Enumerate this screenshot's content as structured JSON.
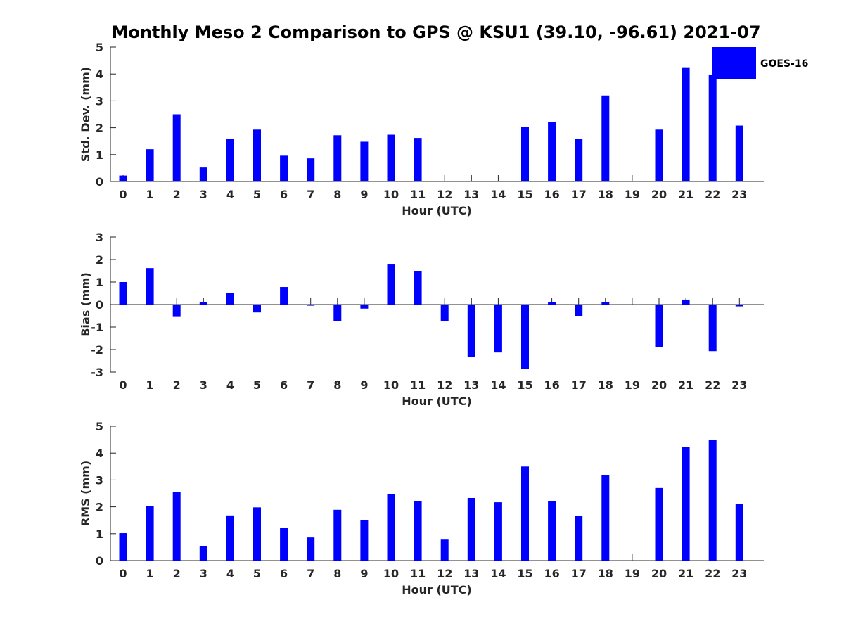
{
  "title": "Monthly Meso 2 Comparison to GPS @ KSU1 (39.10, -96.61) 2021-07",
  "legend": {
    "label": "GOES-16",
    "color": "#0000ff"
  },
  "chart_data": [
    {
      "type": "bar",
      "xlabel": "Hour (UTC)",
      "ylabel": "Std. Dev. (mm)",
      "ylim": [
        0,
        5
      ],
      "yticks": [
        "0",
        "1",
        "2",
        "3",
        "4",
        "5"
      ],
      "categories": [
        "0",
        "1",
        "2",
        "3",
        "4",
        "5",
        "6",
        "7",
        "8",
        "9",
        "10",
        "11",
        "12",
        "13",
        "14",
        "15",
        "16",
        "17",
        "18",
        "19",
        "20",
        "21",
        "22",
        "23"
      ],
      "series": [
        {
          "name": "GOES-16",
          "color": "#0000ff",
          "values": [
            0.22,
            1.2,
            2.5,
            0.52,
            1.58,
            1.93,
            0.96,
            0.86,
            1.72,
            1.48,
            1.74,
            1.62,
            0,
            0,
            0,
            2.03,
            2.2,
            1.58,
            3.2,
            0,
            1.93,
            4.25,
            3.98,
            2.08
          ]
        }
      ],
      "legend": "top-right"
    },
    {
      "type": "bar",
      "xlabel": "Hour (UTC)",
      "ylabel": "Bias (mm)",
      "ylim": [
        -3,
        3
      ],
      "yticks": [
        "-3",
        "-2",
        "-1",
        "0",
        "1",
        "2",
        "3"
      ],
      "categories": [
        "0",
        "1",
        "2",
        "3",
        "4",
        "5",
        "6",
        "7",
        "8",
        "9",
        "10",
        "11",
        "12",
        "13",
        "14",
        "15",
        "16",
        "17",
        "18",
        "19",
        "20",
        "21",
        "22",
        "23"
      ],
      "series": [
        {
          "name": "GOES-16",
          "color": "#0000ff",
          "values": [
            1.0,
            1.62,
            -0.55,
            0.12,
            0.53,
            -0.35,
            0.78,
            -0.05,
            -0.75,
            -0.18,
            1.78,
            1.5,
            -0.75,
            -2.33,
            -2.13,
            -2.87,
            0.1,
            -0.5,
            0.12,
            0,
            -1.88,
            0.22,
            -2.07,
            -0.08
          ]
        }
      ]
    },
    {
      "type": "bar",
      "xlabel": "Hour (UTC)",
      "ylabel": "RMS (mm)",
      "ylim": [
        0,
        5
      ],
      "yticks": [
        "0",
        "1",
        "2",
        "3",
        "4",
        "5"
      ],
      "categories": [
        "0",
        "1",
        "2",
        "3",
        "4",
        "5",
        "6",
        "7",
        "8",
        "9",
        "10",
        "11",
        "12",
        "13",
        "14",
        "15",
        "16",
        "17",
        "18",
        "19",
        "20",
        "21",
        "22",
        "23"
      ],
      "series": [
        {
          "name": "GOES-16",
          "color": "#0000ff",
          "values": [
            1.02,
            2.02,
            2.55,
            0.53,
            1.68,
            1.98,
            1.23,
            0.86,
            1.89,
            1.5,
            2.48,
            2.2,
            0.78,
            2.33,
            2.17,
            3.5,
            2.22,
            1.65,
            3.18,
            0,
            2.7,
            4.23,
            4.5,
            2.1
          ]
        }
      ]
    }
  ]
}
